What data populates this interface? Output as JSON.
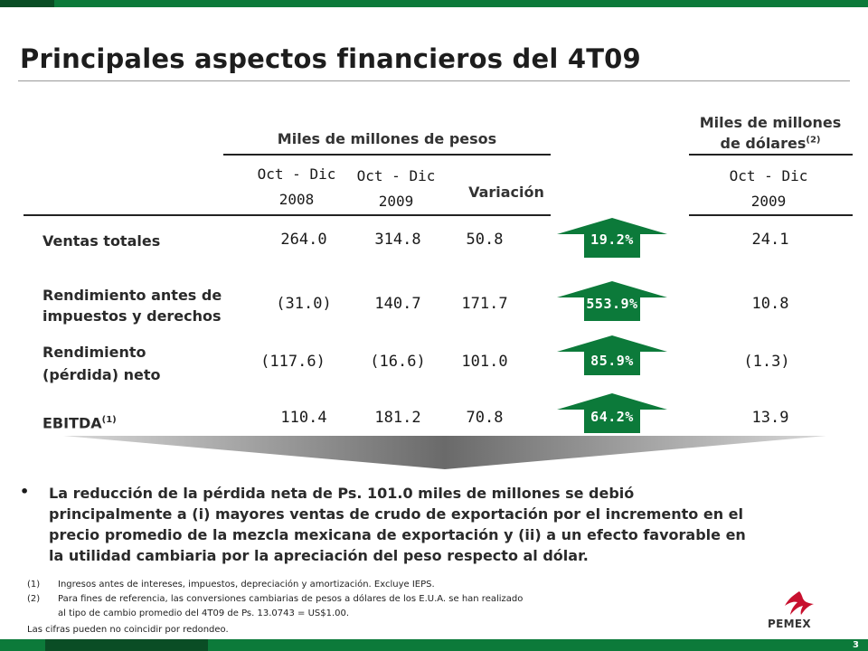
{
  "title": "Principales aspectos financieros del 4T09",
  "header": {
    "pesos_group": "Miles de millones de pesos",
    "usd_group_line1": "Miles de millones",
    "usd_group_line2": "de dólares",
    "usd_group_sup": "(2)",
    "col1_line1": "Oct - Dic",
    "col1_line2": "2008",
    "col2_line1": "Oct - Dic",
    "col2_line2": "2009",
    "col3": "Variación",
    "col4_line1": "Oct - Dic",
    "col4_line2": "2009"
  },
  "rows": [
    {
      "label_line1": "Ventas totales",
      "label_line2": "",
      "sup": "",
      "v2008": "264.0",
      "v2009": "314.8",
      "var": "50.8",
      "pct": "19.2%",
      "usd": "24.1"
    },
    {
      "label_line1": "Rendimiento antes de",
      "label_line2": "impuestos y derechos",
      "sup": "",
      "v2008": "(31.0)",
      "v2009": "140.7",
      "var": "171.7",
      "pct": "553.9%",
      "usd": "10.8"
    },
    {
      "label_line1": "Rendimiento",
      "label_line2": "(pérdida) neto",
      "sup": "",
      "v2008": "(117.6)",
      "v2009": "(16.6)",
      "var": "101.0",
      "pct": "85.9%",
      "usd": "(1.3)"
    },
    {
      "label_line1": "EBITDA",
      "label_line2": "",
      "sup": "(1)",
      "v2008": "110.4",
      "v2009": "181.2",
      "var": "70.8",
      "pct": "64.2%",
      "usd": "13.9"
    }
  ],
  "bullet": {
    "line1": "La reducción de la pérdida neta de Ps. 101.0 miles de millones se debió",
    "line2": "principalmente  a (i) mayores ventas de crudo de exportación por el incremento en el",
    "line3": "precio promedio de la mezcla mexicana de exportación y (ii) a un efecto favorable en",
    "line4": "la utilidad cambiaria por la apreciación del peso respecto al dólar."
  },
  "footnotes": [
    {
      "num": "(1)",
      "text": "Ingresos antes de intereses, impuestos, depreciación y amortización. Excluye IEPS."
    },
    {
      "num": "(2)",
      "text": "Para fines de referencia, las conversiones cambiarias de pesos a dólares de los E.U.A. se han realizado"
    },
    {
      "num": "",
      "text": "al tipo de cambio promedio del 4T09 de Ps. 13.0743 = US$1.00."
    }
  ],
  "note": "Las cifras pueden no coincidir por redondeo.",
  "logo": "PEMEX",
  "page_number": "3",
  "colors": {
    "brand_green": "#0c7a3a",
    "dark_green": "#0a4d25",
    "logo_red": "#c8102e"
  }
}
